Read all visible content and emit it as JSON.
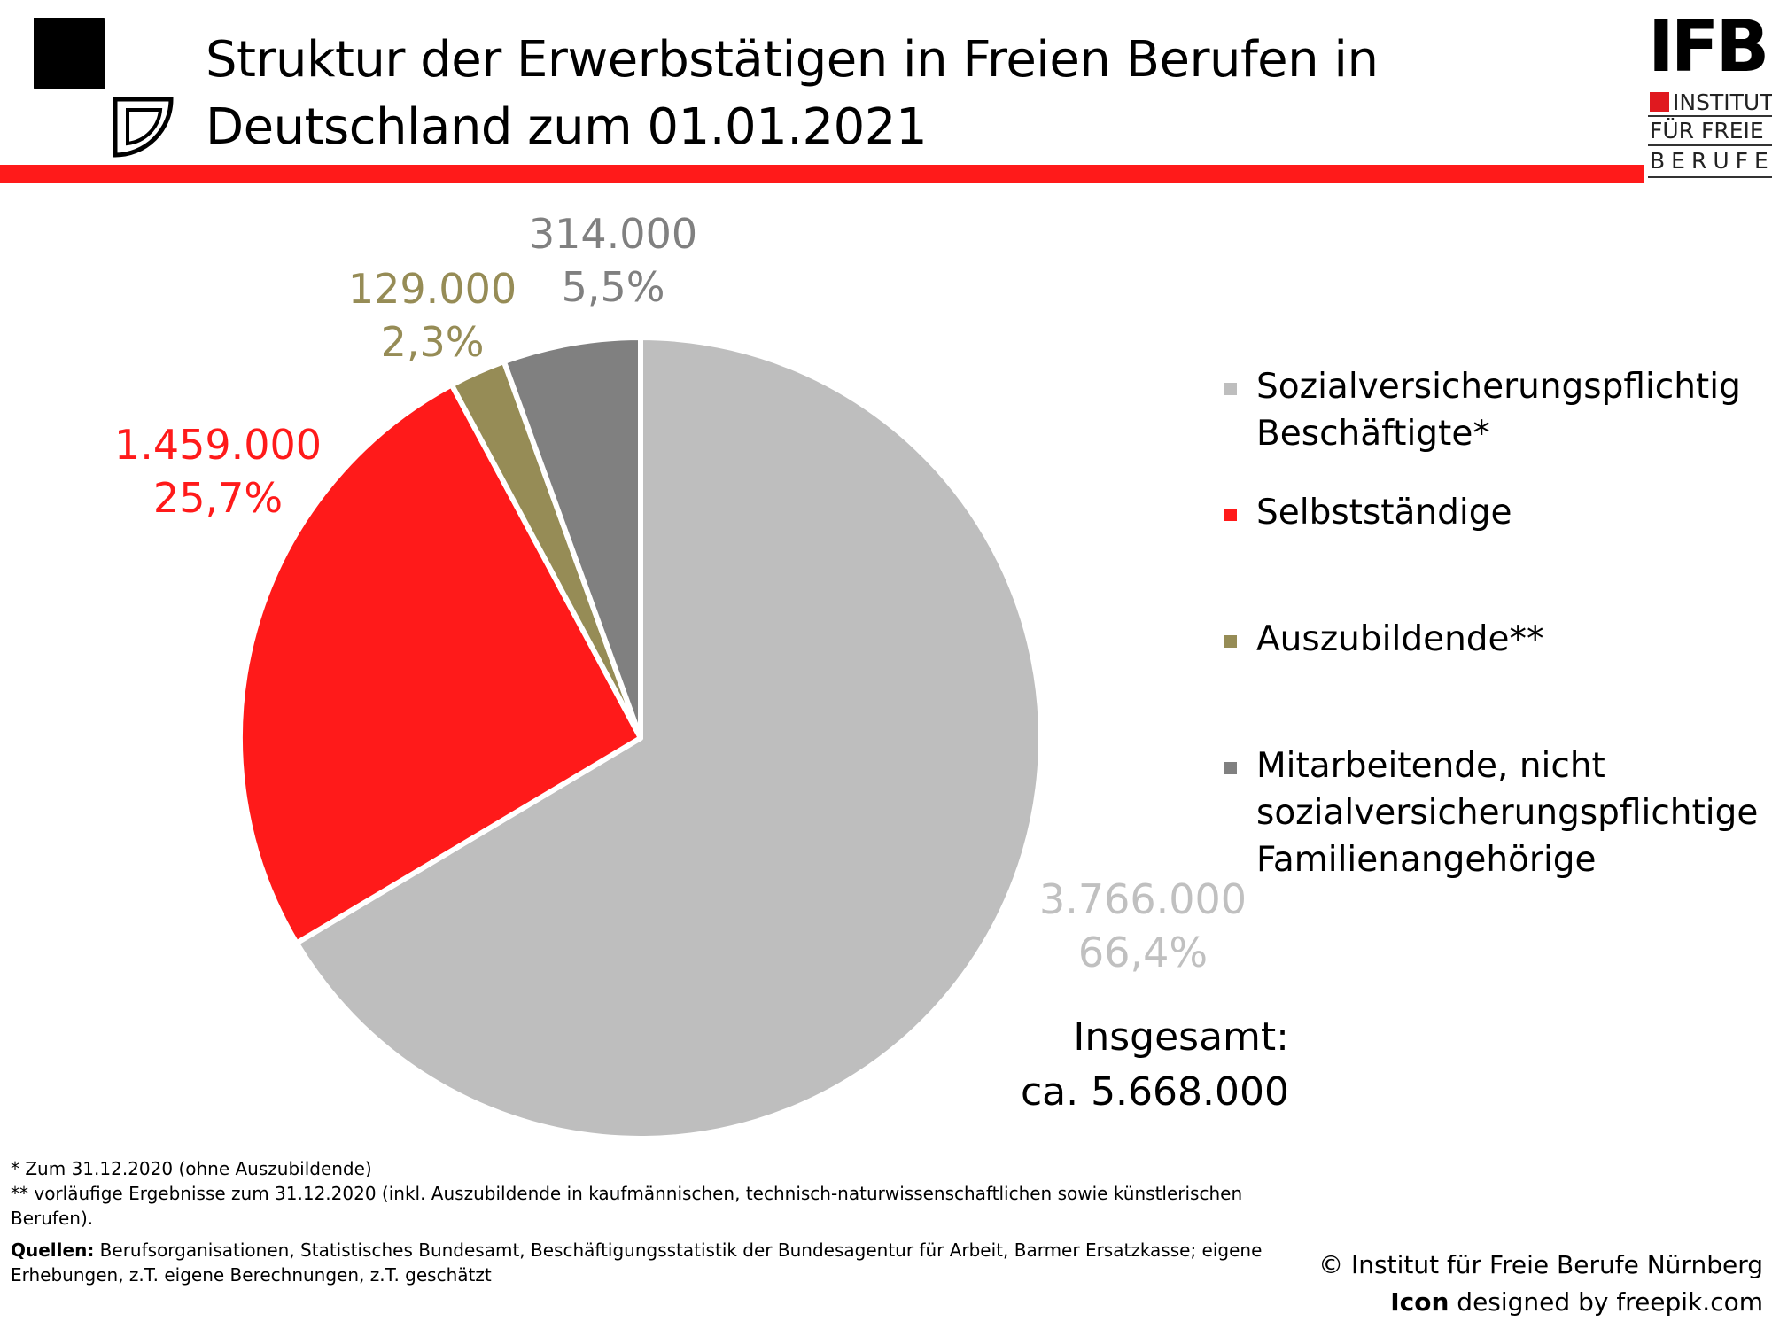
{
  "title": {
    "line1": "Struktur der Erwerbstätigen in Freien Berufen in",
    "line2": "Deutschland zum 01.01.2021"
  },
  "logo": {
    "mark": "IFB",
    "line1": "INSTITUT",
    "line2": "FÜR FREIE",
    "line3": "BERUFE",
    "icon": "pie-chart-logo-icon"
  },
  "colors": {
    "header_bar": "#ff1a1a",
    "sozial": "#bebebe",
    "selbst": "#ff1a1a",
    "azubi": "#968c56",
    "mitarbeitende": "#808080",
    "sozial_label": "#c0c0c0",
    "selbst_label": "#ff1a1a",
    "azubi_label": "#968c56",
    "mitarbeitende_label": "#808080"
  },
  "chart_data": {
    "type": "pie",
    "start_angle_deg": 0,
    "direction": "clockwise",
    "slices": [
      {
        "name": "Sozialversicherungspflichtig Beschäftigte*",
        "value": 3766000,
        "value_label": "3.766.000",
        "percent_label": "66,4%",
        "color": "#bebebe"
      },
      {
        "name": "Selbstständige",
        "value": 1459000,
        "value_label": "1.459.000",
        "percent_label": "25,7%",
        "color": "#ff1a1a"
      },
      {
        "name": "Auszubildende**",
        "value": 129000,
        "value_label": "129.000",
        "percent_label": "2,3%",
        "color": "#968c56"
      },
      {
        "name": "Mitarbeitende, nicht sozialversicherungspflichtige Familienangehörige",
        "value": 314000,
        "value_label": "314.000",
        "percent_label": "5,5%",
        "color": "#808080"
      }
    ],
    "legend_position": "right"
  },
  "legend": [
    {
      "lines": [
        "Sozialversicherungspflichtig",
        "Beschäftigte*"
      ]
    },
    {
      "lines": [
        "Selbstständige"
      ]
    },
    {
      "lines": [
        "Auszubildende**"
      ]
    },
    {
      "lines": [
        "Mitarbeitende, nicht",
        "sozialversicherungspflichtige",
        "Familienangehörige"
      ]
    }
  ],
  "total": {
    "label": "Insgesamt:",
    "value": "ca. 5.668.000"
  },
  "footnotes": {
    "note1": "* Zum 31.12.2020 (ohne Auszubildende)",
    "note2": "** vorläufige Ergebnisse zum 31.12.2020 (inkl. Auszubildende in kaufmännischen, technisch-naturwissenschaftlichen sowie künstlerischen Berufen).",
    "sources_label": "Quellen:",
    "sources": " Berufsorganisationen, Statistisches Bundesamt, Beschäftigungsstatistik der Bundesagentur für Arbeit, Barmer Ersatzkasse; eigene Erhebungen, z.T. eigene Berechnungen, z.T. geschätzt"
  },
  "credits": {
    "copyright": "© Institut für Freie Berufe Nürnberg",
    "icon_label": "Icon",
    "icon_credit": " designed by freepik.com"
  }
}
